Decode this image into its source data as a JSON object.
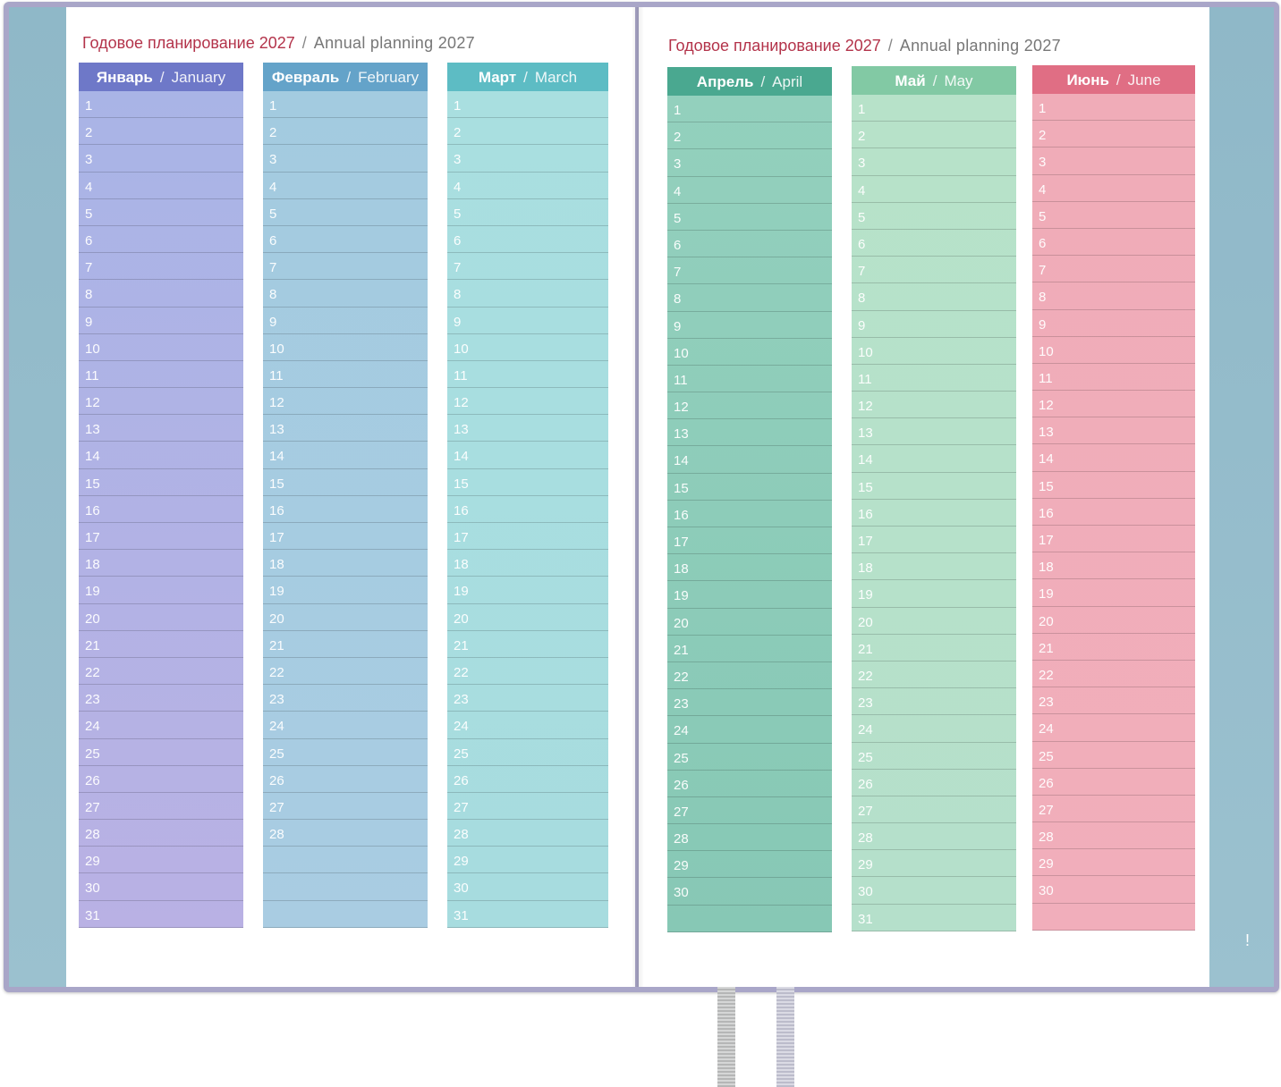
{
  "left_page": {
    "title_ru": "Годовое планирование 2027",
    "title_sep": "/",
    "title_en": "Annual  planning  2027"
  },
  "right_page": {
    "title_ru": "Годовое планирование 2027",
    "title_sep": "/",
    "title_en": "Annual  planning  2027"
  },
  "months": [
    {
      "ru": "Январь",
      "en": "January",
      "days": 31,
      "colors": {
        "head": "#6e78c8",
        "top": "#a9b4e6",
        "bottom": "#b9b1e4"
      }
    },
    {
      "ru": "Февраль",
      "en": "February",
      "days": 28,
      "colors": {
        "head": "#64a3c9",
        "top": "#a3cbe0",
        "bottom": "#a9cce2"
      }
    },
    {
      "ru": "Март",
      "en": "March",
      "days": 31,
      "colors": {
        "head": "#5dbcc4",
        "top": "#a9dfe0",
        "bottom": "#a7dcdf"
      }
    },
    {
      "ru": "Апрель",
      "en": "April",
      "days": 30,
      "colors": {
        "head": "#4aa890",
        "top": "#93d0bd",
        "bottom": "#87c8b5"
      }
    },
    {
      "ru": "Май",
      "en": "May",
      "days": 31,
      "colors": {
        "head": "#82c9a4",
        "top": "#b7e2c9",
        "bottom": "#b5e0cb"
      }
    },
    {
      "ru": "Июнь",
      "en": "June",
      "days": 30,
      "colors": {
        "head": "#e06e84",
        "top": "#f0acb8",
        "bottom": "#f1aebb"
      }
    }
  ],
  "day_numbers": [
    "1",
    "2",
    "3",
    "4",
    "5",
    "6",
    "7",
    "8",
    "9",
    "10",
    "11",
    "12",
    "13",
    "14",
    "15",
    "16",
    "17",
    "18",
    "19",
    "20",
    "21",
    "22",
    "23",
    "24",
    "25",
    "26",
    "27",
    "28",
    "29",
    "30",
    "31"
  ],
  "margin_mark": "!"
}
